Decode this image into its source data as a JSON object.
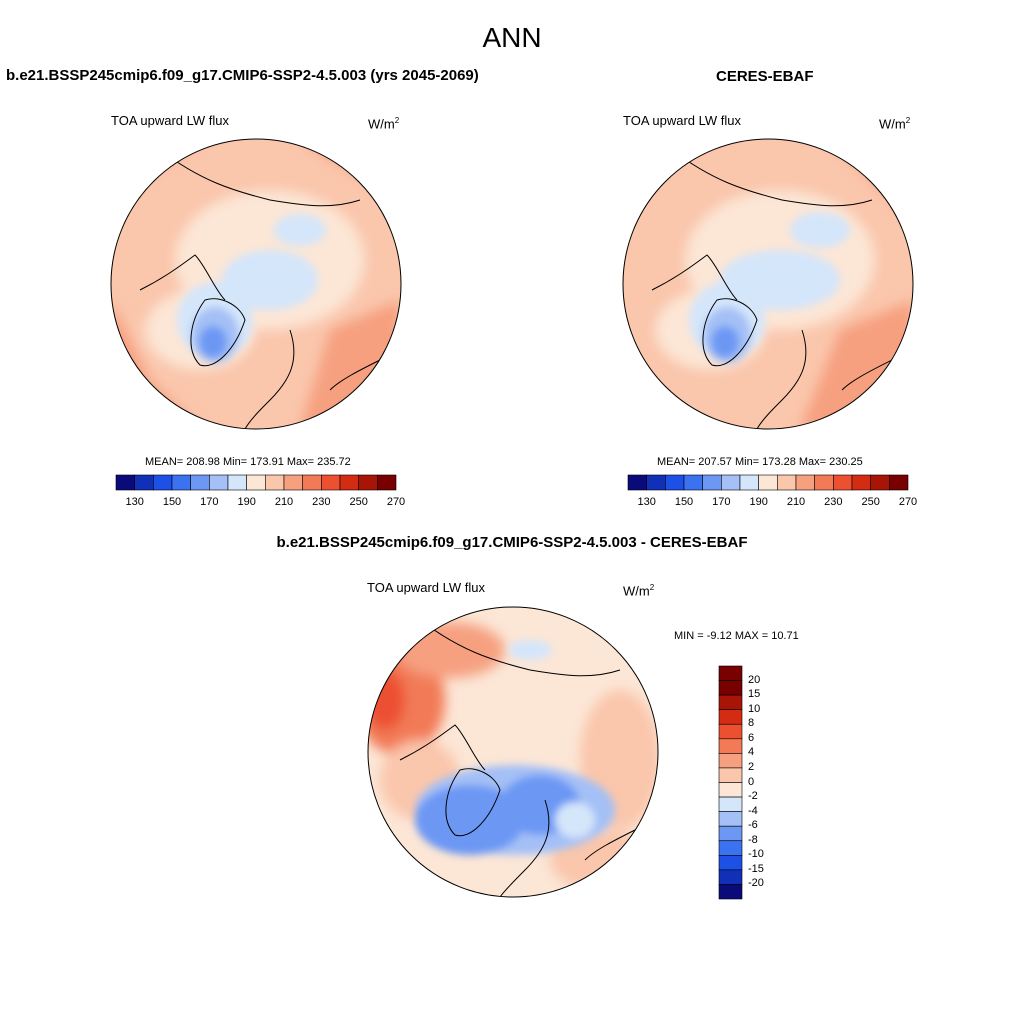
{
  "title": "ANN",
  "left": {
    "heading": "b.e21.BSSP245cmip6.f09_g17.CMIP6-SSP2-4.5.003 (yrs 2045-2069)",
    "variable": "TOA upward LW flux",
    "units_base": "W/m",
    "units_exp": "2",
    "stats": "MEAN= 208.98  Min= 173.91  Max= 235.72"
  },
  "right": {
    "heading": "CERES-EBAF",
    "variable": "TOA upward LW flux",
    "units_base": "W/m",
    "units_exp": "2",
    "stats": "MEAN= 207.57  Min= 173.28  Max= 230.25"
  },
  "diff": {
    "heading": "b.e21.BSSP245cmip6.f09_g17.CMIP6-SSP2-4.5.003 - CERES-EBAF",
    "variable": "TOA upward LW flux",
    "units_base": "W/m",
    "units_exp": "2",
    "stats": "MIN =  -9.12 MAX =  10.71"
  },
  "abs_colorbar": {
    "tick_labels": [
      "130",
      "150",
      "170",
      "190",
      "210",
      "230",
      "250",
      "270"
    ],
    "colors": [
      "#0a0a7a",
      "#1030b8",
      "#1c50e6",
      "#3a72f0",
      "#6c98f4",
      "#a4c0f6",
      "#d4e6fa",
      "#fce6d6",
      "#fac6ac",
      "#f6a080",
      "#f27a56",
      "#ec5030",
      "#d42c12",
      "#a81406",
      "#780000"
    ]
  },
  "diff_colorbar": {
    "tick_labels": [
      "20",
      "15",
      "10",
      "8",
      "6",
      "4",
      "2",
      "0",
      "-2",
      "-4",
      "-6",
      "-8",
      "-10",
      "-15",
      "-20"
    ],
    "colors": [
      "#780000",
      "#a81406",
      "#d42c12",
      "#ec5030",
      "#f27a56",
      "#f6a080",
      "#fac6ac",
      "#fce6d6",
      "#d4e6fa",
      "#a4c0f6",
      "#6c98f4",
      "#3a72f0",
      "#1c50e6",
      "#1030b8",
      "#0a0a7a"
    ]
  }
}
